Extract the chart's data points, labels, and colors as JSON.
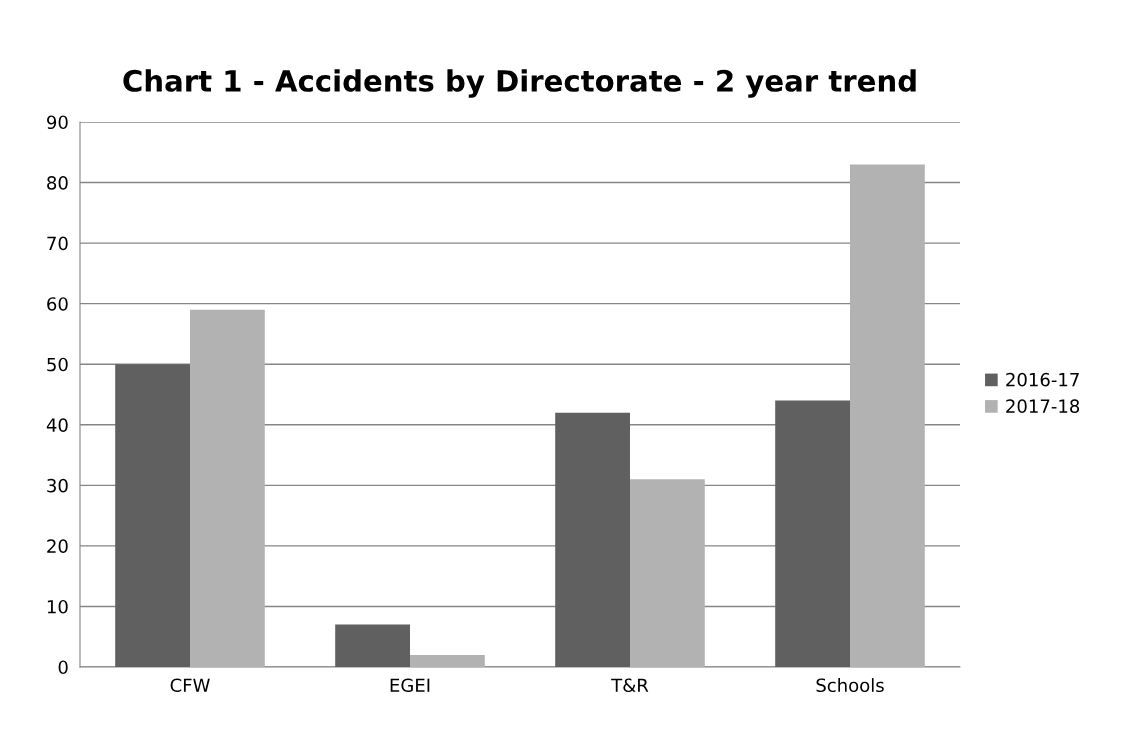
{
  "chart_data": {
    "type": "bar",
    "title": "Chart 1 - Accidents by Directorate - 2 year trend",
    "categories": [
      "CFW",
      "EGEI",
      "T&R",
      "Schools"
    ],
    "series": [
      {
        "name": "2016-17",
        "color": "#606060",
        "values": [
          50,
          7,
          42,
          44
        ]
      },
      {
        "name": "2017-18",
        "color": "#b2b2b2",
        "values": [
          59,
          2,
          31,
          83
        ]
      }
    ],
    "ylim": [
      0,
      90
    ],
    "yticks": [
      0,
      10,
      20,
      30,
      40,
      50,
      60,
      70,
      80,
      90
    ],
    "grid": "y",
    "legend": "right"
  }
}
